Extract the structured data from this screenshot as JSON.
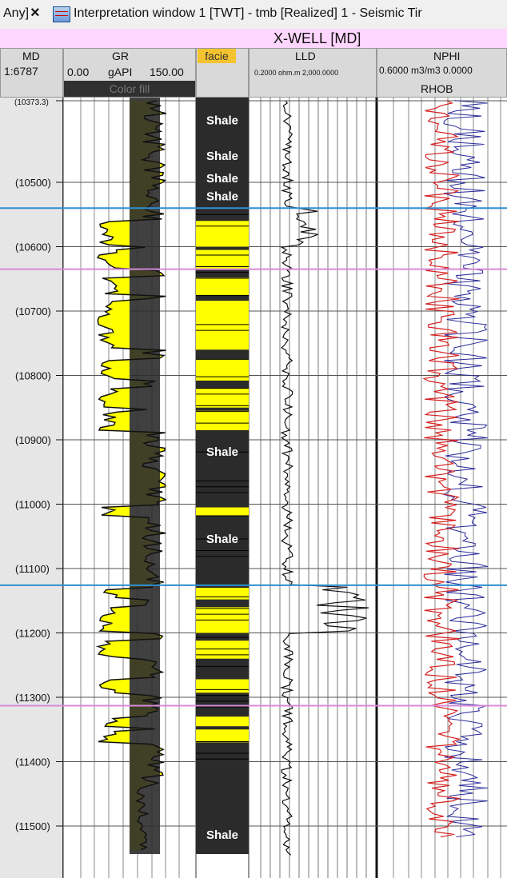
{
  "window": {
    "tab_prefix": "Any]",
    "close_icon": "×",
    "tab_icon": "seismic-window-icon",
    "tab_title": "Interpretation window 1 [TWT] - tmb [Realized] 1 - Seismic Tir"
  },
  "well": {
    "title": "X-WELL [MD]"
  },
  "headers": {
    "md": {
      "label": "MD",
      "scale": "1:6787"
    },
    "gr": {
      "label": "GR",
      "min": "0.00",
      "unit": "gAPI",
      "max": "150.00",
      "fill": "Color fill"
    },
    "facie": {
      "label": "facie"
    },
    "lld": {
      "label": "LLD",
      "range": "0.2000 ohm.m 2,000.0000"
    },
    "nphi": {
      "label": "NPHI",
      "range": "0.6000 m3/m3 0.0000"
    },
    "rhob": {
      "label": "RHOB"
    }
  },
  "md_ticks": [
    "(10373.3)",
    "(10500)",
    "(10600)",
    "(10700)",
    "(10800)",
    "(10900)",
    "(11000)",
    "(11100)",
    "(11200)",
    "(11300)",
    "(11400)",
    "(11500)"
  ],
  "md_tick_values": [
    10373.3,
    10500,
    10600,
    10700,
    10800,
    10900,
    11000,
    11100,
    11200,
    11300,
    11400,
    11500
  ],
  "facies": {
    "shale_label": "Shale",
    "shale_depths": [
      10410,
      10465,
      10500,
      10528,
      10925,
      11060,
      11520
    ],
    "sand_intervals": [
      [
        10560,
        10600
      ],
      [
        10605,
        10635
      ],
      [
        10648,
        10675
      ],
      [
        10684,
        10760
      ],
      [
        10775,
        10808
      ],
      [
        10820,
        10850
      ],
      [
        10855,
        10885
      ],
      [
        11005,
        11018
      ],
      [
        11130,
        11148
      ],
      [
        11160,
        11200
      ],
      [
        11212,
        11240
      ],
      [
        11272,
        11293
      ],
      [
        11330,
        11345
      ],
      [
        11350,
        11370
      ]
    ]
  },
  "markers": {
    "blue_depths": [
      10540,
      11126
    ],
    "purple_depths": [
      10635,
      11313
    ],
    "blue_color": "#2e8fd0",
    "purple_color": "#d78ad9"
  },
  "colors": {
    "sand": "#ffff00",
    "shale": "#2b2b2b",
    "nphi": "#d62020",
    "rhob": "#2b2b9a",
    "header": "#d9d9d9",
    "well_header": "#ffd6ff"
  }
}
